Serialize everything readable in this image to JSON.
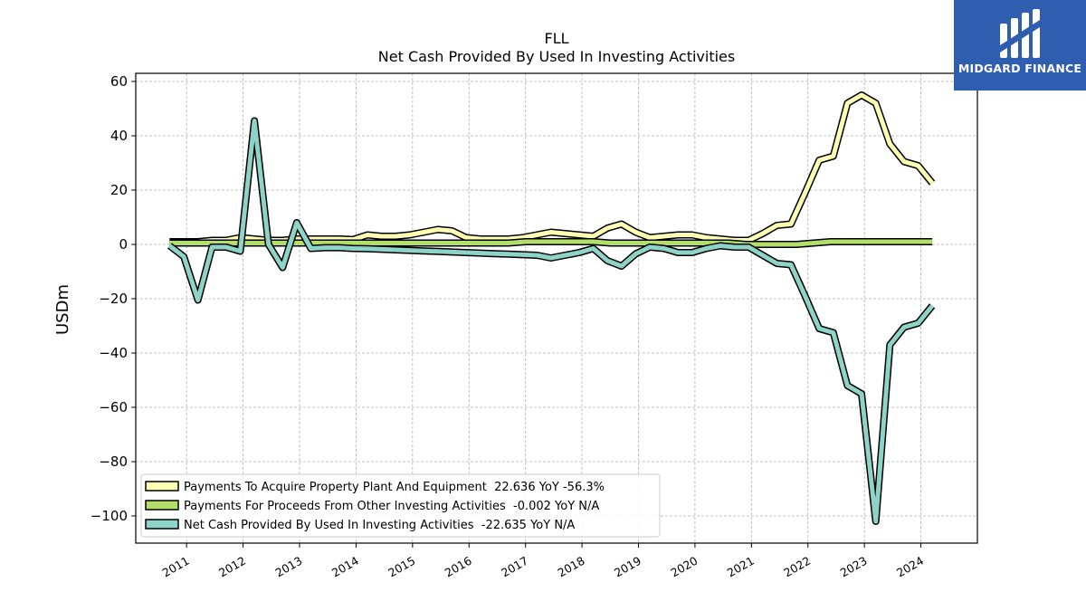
{
  "logo": {
    "text": "MIDGARD FINANCE",
    "color": "#2f5eb0"
  },
  "chart_data": {
    "type": "line",
    "title": "FLL",
    "subtitle": "Net Cash Provided By Used In Investing Activities",
    "ylabel": "USDm",
    "xlabel": "",
    "ylim": [
      -110,
      63
    ],
    "xlim": [
      2010.1,
      2025.0
    ],
    "yticks": [
      60,
      40,
      20,
      0,
      -20,
      -40,
      -60,
      -80,
      -100
    ],
    "ytick_labels": [
      "60",
      "40",
      "20",
      "0",
      "−20",
      "−40",
      "−60",
      "−80",
      "−100"
    ],
    "xticks": [
      2011,
      2012,
      2013,
      2014,
      2015,
      2016,
      2017,
      2018,
      2019,
      2020,
      2021,
      2022,
      2023,
      2024
    ],
    "xtick_labels": [
      "2011",
      "2012",
      "2013",
      "2014",
      "2015",
      "2016",
      "2017",
      "2018",
      "2019",
      "2020",
      "2021",
      "2022",
      "2023",
      "2024"
    ],
    "grid": true,
    "legend_position": "lower-left",
    "series": [
      {
        "name": "Payments To Acquire Property Plant And Equipment  22.636 YoY -56.3%",
        "color": "#ffffb3",
        "x": [
          2010.7,
          2010.95,
          2011.2,
          2011.45,
          2011.7,
          2011.95,
          2012.2,
          2012.45,
          2012.7,
          2012.95,
          2013.2,
          2013.45,
          2013.7,
          2013.95,
          2014.2,
          2014.45,
          2014.7,
          2014.95,
          2015.2,
          2015.45,
          2015.7,
          2015.95,
          2016.2,
          2016.45,
          2016.7,
          2016.95,
          2017.2,
          2017.45,
          2017.7,
          2017.95,
          2018.2,
          2018.45,
          2018.7,
          2018.95,
          2019.2,
          2019.45,
          2019.7,
          2019.95,
          2020.2,
          2020.45,
          2020.7,
          2020.95,
          2021.2,
          2021.45,
          2021.7,
          2021.95,
          2022.2,
          2022.45,
          2022.7,
          2022.95,
          2023.2,
          2023.45,
          2023.7,
          2023.95,
          2024.2
        ],
        "y": [
          1,
          1,
          1,
          1.5,
          1.5,
          2.5,
          2,
          1.5,
          1.5,
          2,
          2,
          2,
          2,
          1.8,
          3.5,
          3,
          3,
          3.5,
          4.5,
          5.5,
          5,
          2.5,
          2,
          2,
          2,
          2.5,
          3.5,
          4.5,
          4,
          3.5,
          3,
          6,
          7.5,
          4.5,
          2.5,
          3,
          3.5,
          3.5,
          2.5,
          2,
          1.5,
          1.5,
          4,
          7,
          7.5,
          19,
          31,
          32.5,
          52,
          55,
          52,
          37,
          30.5,
          29,
          22.6
        ]
      },
      {
        "name": "Payments For Proceeds From Other Investing Activities  -0.002 YoY N/A",
        "color": "#b3de69",
        "x": [
          2010.7,
          2011.0,
          2011.3,
          2011.6,
          2011.9,
          2012.2,
          2012.5,
          2012.8,
          2013.1,
          2013.4,
          2013.7,
          2014.0,
          2014.3,
          2014.6,
          2014.9,
          2015.2,
          2015.5,
          2015.8,
          2016.1,
          2016.4,
          2016.7,
          2017.0,
          2017.3,
          2017.6,
          2017.9,
          2018.2,
          2018.5,
          2018.8,
          2019.1,
          2019.4,
          2019.7,
          2020.0,
          2020.3,
          2020.6,
          2020.9,
          2021.2,
          2021.5,
          2021.8,
          2022.1,
          2022.4,
          2022.7,
          2023.0,
          2023.3,
          2023.6,
          2023.9,
          2024.2
        ],
        "y": [
          0.5,
          0.5,
          0.5,
          0.5,
          0.5,
          0.5,
          0.5,
          0.5,
          0.5,
          0.5,
          0.5,
          0.5,
          0.5,
          0.5,
          0.5,
          0.5,
          0.5,
          0.5,
          0.5,
          0.5,
          0.5,
          1,
          1,
          1,
          1,
          1,
          0.5,
          0.5,
          0.5,
          0.5,
          0.5,
          0.5,
          0.5,
          0.5,
          0,
          0,
          0,
          0,
          0.5,
          1,
          1,
          1,
          1,
          1,
          1,
          1
        ]
      },
      {
        "name": "Net Cash Provided By Used In Investing Activities  -22.635 YoY N/A",
        "color": "#8dd3c7",
        "x": [
          2010.7,
          2010.95,
          2011.2,
          2011.45,
          2011.7,
          2011.95,
          2012.2,
          2012.45,
          2012.7,
          2012.95,
          2013.2,
          2013.45,
          2013.7,
          2013.95,
          2014.2,
          2014.45,
          2014.7,
          2014.95,
          2015.2,
          2015.45,
          2015.7,
          2015.95,
          2016.2,
          2016.45,
          2016.7,
          2016.95,
          2017.2,
          2017.45,
          2017.7,
          2017.95,
          2018.2,
          2018.45,
          2018.7,
          2018.95,
          2019.2,
          2019.45,
          2019.7,
          2019.95,
          2020.2,
          2020.45,
          2020.7,
          2020.95,
          2021.2,
          2021.45,
          2021.7,
          2021.95,
          2022.2,
          2022.45,
          2022.7,
          2022.95,
          2023.2,
          2023.45,
          2023.7,
          2023.95,
          2024.2
        ],
        "y": [
          -0.5,
          -4.5,
          -20.5,
          -1,
          -1,
          -2.5,
          45.5,
          0,
          -8.5,
          8,
          -1.5,
          -1.2,
          -1.2,
          -1.5,
          -1.6,
          -1.8,
          -2,
          -2.2,
          -2.4,
          -2.6,
          -2.8,
          -3,
          -3.2,
          -3.4,
          -3.6,
          -3.8,
          -4,
          -5,
          -4,
          -3,
          -1.5,
          -6,
          -8,
          -3.5,
          -1,
          -1.5,
          -3,
          -3,
          -1.5,
          -0.5,
          -1,
          -1,
          -4,
          -7,
          -7.5,
          -19,
          -31,
          -32.5,
          -52,
          -55,
          -102,
          -37,
          -30.5,
          -29,
          -22.6
        ]
      }
    ]
  }
}
